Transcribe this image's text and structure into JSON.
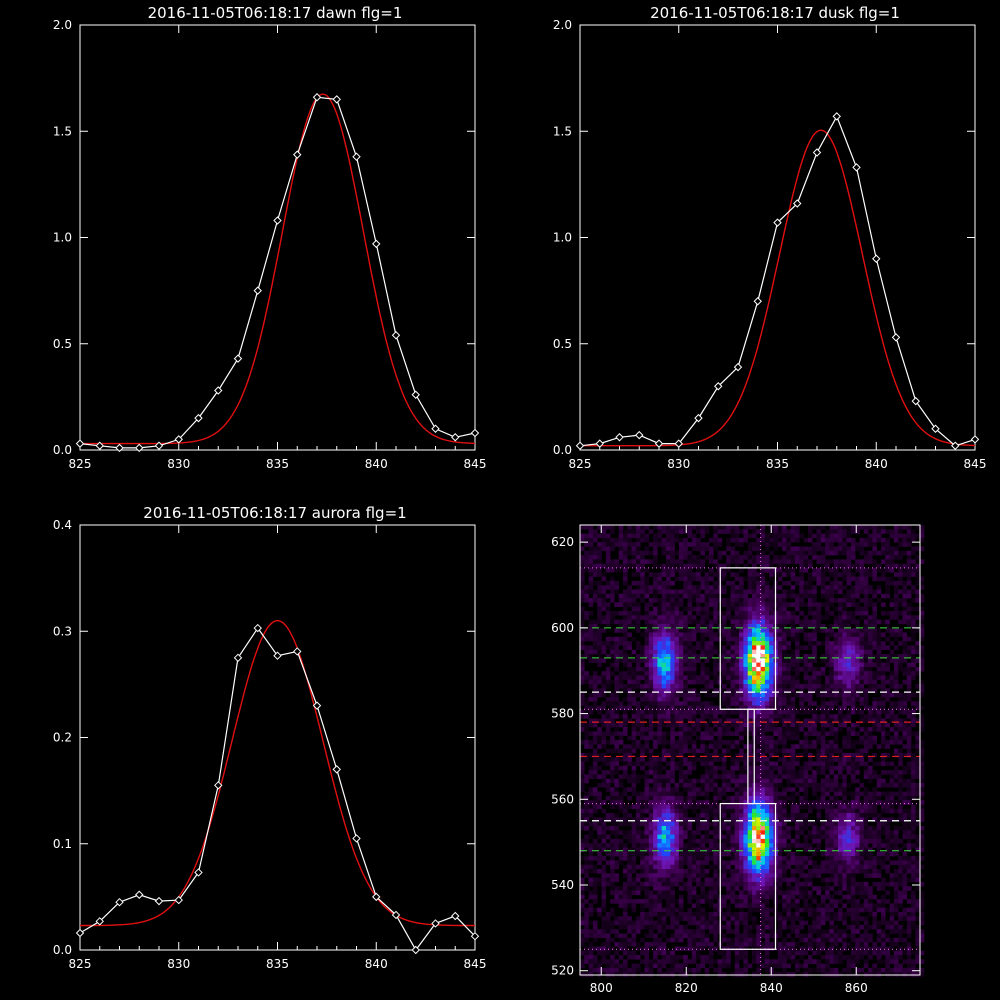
{
  "colors": {
    "background": "#000000",
    "axes": "#ffffff",
    "data_line": "#ffffff",
    "fit_line": "#e01010",
    "green_dash": "#3cdc3c",
    "red_dash": "#e02020",
    "white_dash": "#ffffff",
    "boxes": "#ffffff",
    "dotted": "#ff66ff"
  },
  "chart_data": [
    {
      "type": "line",
      "title": "2016-11-05T06:18:17 dawn flg=1",
      "xlim": [
        825,
        845
      ],
      "ylim": [
        0,
        2.0
      ],
      "xticks": [
        "825",
        "830",
        "835",
        "840",
        "845"
      ],
      "yticks": [
        "0.0",
        "0.5",
        "1.0",
        "1.5",
        "2.0"
      ],
      "grid": false,
      "series": [
        {
          "style": "white line with diamond markers",
          "x": [
            825,
            826,
            827,
            828,
            829,
            830,
            831,
            832,
            833,
            834,
            835,
            836,
            837,
            838,
            839,
            840,
            841,
            842,
            843,
            844,
            845
          ],
          "y": [
            0.03,
            0.02,
            0.01,
            0.01,
            0.02,
            0.05,
            0.15,
            0.28,
            0.43,
            0.75,
            1.08,
            1.39,
            1.66,
            1.65,
            1.38,
            0.97,
            0.54,
            0.26,
            0.1,
            0.06,
            0.08
          ]
        },
        {
          "style": "red gaussian fit",
          "fit": {
            "peak": 1.645,
            "center": 837.3,
            "sigma": 2.05,
            "base": 0.03
          }
        }
      ]
    },
    {
      "type": "line",
      "title": "2016-11-05T06:18:17 dusk flg=1",
      "xlim": [
        825,
        845
      ],
      "ylim": [
        0,
        2.0
      ],
      "xticks": [
        "825",
        "830",
        "835",
        "840",
        "845"
      ],
      "yticks": [
        "0.0",
        "0.5",
        "1.0",
        "1.5",
        "2.0"
      ],
      "grid": false,
      "series": [
        {
          "style": "white line with diamond markers",
          "x": [
            825,
            826,
            827,
            828,
            829,
            830,
            831,
            832,
            833,
            834,
            835,
            836,
            837,
            838,
            839,
            840,
            841,
            842,
            843,
            844,
            845
          ],
          "y": [
            0.02,
            0.03,
            0.06,
            0.07,
            0.03,
            0.03,
            0.15,
            0.3,
            0.39,
            0.7,
            1.07,
            1.16,
            1.4,
            1.57,
            1.33,
            0.9,
            0.53,
            0.23,
            0.1,
            0.02,
            0.05
          ]
        },
        {
          "style": "red gaussian fit",
          "fit": {
            "peak": 1.485,
            "center": 837.2,
            "sigma": 2.1,
            "base": 0.02
          }
        }
      ]
    },
    {
      "type": "line",
      "title": "2016-11-05T06:18:17 aurora flg=1",
      "xlim": [
        825,
        845
      ],
      "ylim": [
        0,
        0.4
      ],
      "xticks": [
        "825",
        "830",
        "835",
        "840",
        "845"
      ],
      "yticks": [
        "0.0",
        "0.1",
        "0.2",
        "0.3",
        "0.4"
      ],
      "grid": false,
      "series": [
        {
          "style": "white line with diamond markers",
          "x": [
            825,
            826,
            827,
            828,
            829,
            830,
            831,
            832,
            833,
            834,
            835,
            836,
            837,
            838,
            839,
            840,
            841,
            842,
            843,
            844,
            845
          ],
          "y": [
            0.016,
            0.027,
            0.045,
            0.052,
            0.046,
            0.047,
            0.073,
            0.155,
            0.275,
            0.303,
            0.277,
            0.281,
            0.23,
            0.17,
            0.105,
            0.05,
            0.033,
            0.0,
            0.025,
            0.032,
            0.013
          ]
        },
        {
          "style": "red gaussian fit",
          "fit": {
            "peak": 0.287,
            "center": 835.0,
            "sigma": 2.3,
            "base": 0.023
          }
        }
      ]
    },
    {
      "type": "heatmap",
      "title": "",
      "xlim": [
        795,
        875
      ],
      "ylim": [
        519,
        624
      ],
      "xticks": [
        "800",
        "820",
        "840",
        "860"
      ],
      "yticks": [
        "520",
        "540",
        "560",
        "580",
        "600",
        "620"
      ],
      "grid": false,
      "colormap": "black-purple-blue-cyan-green-yellow-red-white",
      "blobs": [
        {
          "x": 837,
          "y": 592,
          "sx": 2.3,
          "sy": 6,
          "amp": 1.0
        },
        {
          "x": 837,
          "y": 551,
          "sx": 2.3,
          "sy": 6,
          "amp": 0.95
        },
        {
          "x": 815,
          "y": 592,
          "sx": 2.0,
          "sy": 5,
          "amp": 0.55
        },
        {
          "x": 815,
          "y": 551,
          "sx": 2.0,
          "sy": 5,
          "amp": 0.5
        },
        {
          "x": 858,
          "y": 592,
          "sx": 2.0,
          "sy": 4,
          "amp": 0.3
        },
        {
          "x": 858,
          "y": 551,
          "sx": 2.0,
          "sy": 4,
          "amp": 0.3
        }
      ],
      "boxes": [
        {
          "x0": 828,
          "x1": 841,
          "y0": 581,
          "y1": 614
        },
        {
          "x0": 828,
          "x1": 841,
          "y0": 525,
          "y1": 559
        },
        {
          "x0": 834.5,
          "x1": 836,
          "y0": 559,
          "y1": 581
        }
      ],
      "dotted_hlines": [
        614,
        525,
        581,
        559
      ],
      "dotted_vline": 837.5,
      "green_dash_hlines": [
        600,
        593,
        555,
        548
      ],
      "white_dash_hlines": [
        585,
        555
      ],
      "red_dash_hlines": [
        578,
        570
      ]
    }
  ]
}
